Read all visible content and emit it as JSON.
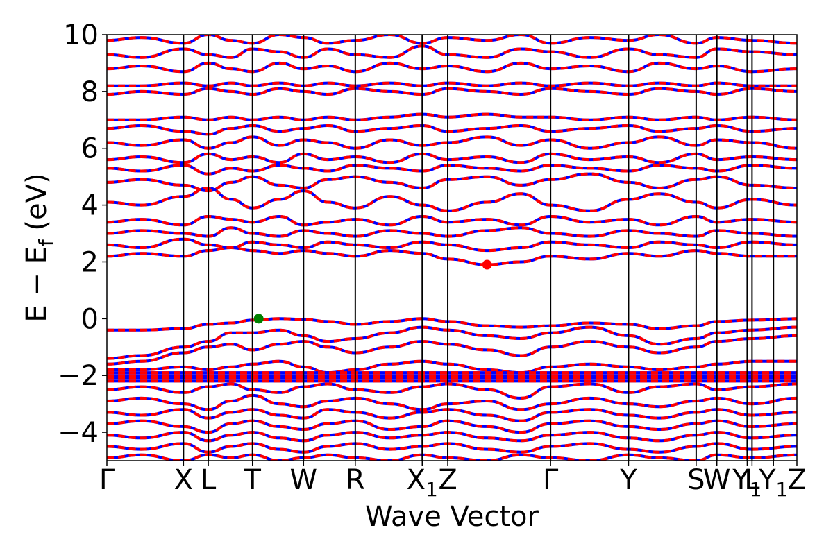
{
  "chart_data": {
    "type": "line",
    "title": "",
    "xlabel": "Wave Vector",
    "ylabel": "E − E_f (eV)",
    "ylabel_parts": {
      "prefix": "E − E",
      "subscript": "f",
      "suffix": " (eV)"
    },
    "ylim": [
      -5,
      10
    ],
    "xlim": [
      0,
      1
    ],
    "yticks": [
      -4,
      -2,
      0,
      2,
      4,
      6,
      8,
      10
    ],
    "ytick_labels": [
      "−4",
      "−2",
      "0",
      "2",
      "4",
      "6",
      "8",
      "10"
    ],
    "grid": false,
    "legend": "none",
    "kpoints": [
      {
        "label": "Γ",
        "pos": 0.0
      },
      {
        "label": "X",
        "pos": 0.111
      },
      {
        "label": "L",
        "pos": 0.147
      },
      {
        "label": "T",
        "pos": 0.211
      },
      {
        "label": "W",
        "pos": 0.285
      },
      {
        "label": "R",
        "pos": 0.36
      },
      {
        "label": "X",
        "sub": "1",
        "pos": 0.457
      },
      {
        "label": "Z",
        "pos": 0.494
      },
      {
        "label": "Γ",
        "pos": 0.643
      },
      {
        "label": "Y",
        "pos": 0.756
      },
      {
        "label": "S",
        "pos": 0.854
      },
      {
        "label": "W",
        "pos": 0.884
      },
      {
        "label": "Y",
        "sub": "1",
        "pos": 0.928
      },
      {
        "label": "L",
        "pos": 0.935
      },
      {
        "label": "Y",
        "sub": "1",
        "pos": 0.966
      },
      {
        "label": "Z",
        "pos": 1.0
      }
    ],
    "vbm_marker": {
      "x": 0.22,
      "y": 0.0,
      "color": "#008000"
    },
    "cbm_marker": {
      "x": 0.551,
      "y": 1.9,
      "color": "#ff0000"
    },
    "series": [
      {
        "values": [
          -0.4,
          -0.4,
          -0.35,
          -0.2,
          -0.15,
          -0.05,
          0.0,
          -0.02,
          -0.1,
          -0.2,
          -0.1,
          0.0,
          -0.1,
          -0.25,
          -0.3,
          -0.25,
          -0.15,
          -0.2,
          -0.35,
          -0.25,
          -0.1,
          -0.05,
          0.0
        ]
      },
      {
        "values": [
          -1.4,
          -1.3,
          -1.0,
          -0.8,
          -0.5,
          -0.5,
          -0.4,
          -0.6,
          -0.8,
          -0.7,
          -0.5,
          -0.3,
          -0.4,
          -0.6,
          -0.7,
          -0.5,
          -0.3,
          -0.6,
          -0.9,
          -0.7,
          -0.5,
          -0.4,
          -0.3
        ]
      },
      {
        "values": [
          -1.6,
          -1.5,
          -1.2,
          -1.0,
          -0.9,
          -1.1,
          -0.9,
          -0.8,
          -1.0,
          -1.2,
          -1.0,
          -0.8,
          -0.9,
          -1.1,
          -1.3,
          -1.0,
          -0.8,
          -1.0,
          -1.2,
          -1.0,
          -0.8,
          -0.7,
          -0.6
        ]
      },
      {
        "values": [
          -1.8,
          -1.8,
          -1.7,
          -1.8,
          -1.7,
          -1.6,
          -1.5,
          -1.7,
          -1.9,
          -1.8,
          -1.6,
          -1.5,
          -1.6,
          -1.8,
          -1.9,
          -1.7,
          -1.6,
          -1.7,
          -1.8,
          -1.7,
          -1.6,
          -1.5,
          -1.5
        ]
      },
      {
        "values": [
          -1.9,
          -1.9,
          -1.9,
          -1.9,
          -1.9,
          -1.9,
          -1.9,
          -1.9,
          -1.9,
          -1.9,
          -1.9,
          -1.9,
          -1.9,
          -1.9,
          -1.9,
          -1.9,
          -1.9,
          -1.9,
          -1.9,
          -1.9,
          -1.9,
          -1.9,
          -1.9
        ]
      },
      {
        "values": [
          -2.0,
          -2.0,
          -2.0,
          -2.0,
          -2.0,
          -2.0,
          -2.0,
          -2.0,
          -2.0,
          -2.0,
          -2.0,
          -2.0,
          -2.0,
          -2.0,
          -2.0,
          -2.0,
          -2.0,
          -2.0,
          -2.0,
          -2.0,
          -2.0,
          -2.0,
          -2.0
        ]
      },
      {
        "values": [
          -2.1,
          -2.1,
          -2.1,
          -2.1,
          -2.1,
          -2.1,
          -2.1,
          -2.1,
          -2.1,
          -2.1,
          -2.1,
          -2.1,
          -2.1,
          -2.1,
          -2.1,
          -2.1,
          -2.1,
          -2.1,
          -2.1,
          -2.1,
          -2.1,
          -2.1,
          -2.1
        ]
      },
      {
        "values": [
          -2.2,
          -2.2,
          -2.2,
          -2.2,
          -2.2,
          -2.2,
          -2.2,
          -2.2,
          -2.2,
          -2.2,
          -2.2,
          -2.2,
          -2.2,
          -2.2,
          -2.2,
          -2.2,
          -2.2,
          -2.2,
          -2.2,
          -2.2,
          -2.2,
          -2.2,
          -2.2
        ]
      },
      {
        "values": [
          -2.5,
          -2.4,
          -2.6,
          -2.4,
          -2.3,
          -2.5,
          -2.6,
          -2.4,
          -2.3,
          -2.5,
          -2.6,
          -2.4,
          -2.3,
          -2.5,
          -2.8,
          -2.4,
          -2.3,
          -2.6,
          -2.4,
          -2.3,
          -2.5,
          -2.4,
          -2.3
        ]
      },
      {
        "values": [
          -2.9,
          -2.8,
          -3.0,
          -3.2,
          -2.9,
          -2.7,
          -3.0,
          -3.1,
          -2.9,
          -2.8,
          -3.0,
          -3.2,
          -3.0,
          -2.9,
          -3.2,
          -3.0,
          -2.8,
          -3.0,
          -3.1,
          -2.9,
          -2.8,
          -3.0,
          -2.8
        ]
      },
      {
        "values": [
          -3.3,
          -3.4,
          -3.2,
          -3.5,
          -3.3,
          -3.2,
          -3.4,
          -3.5,
          -3.2,
          -3.3,
          -3.5,
          -3.3,
          -3.2,
          -3.4,
          -3.6,
          -3.3,
          -3.2,
          -3.4,
          -3.5,
          -3.3,
          -3.2,
          -3.4,
          -3.3
        ]
      },
      {
        "values": [
          -3.7,
          -3.6,
          -3.8,
          -4.0,
          -3.7,
          -3.6,
          -3.8,
          -3.9,
          -3.7,
          -3.6,
          -3.9,
          -3.8,
          -3.6,
          -3.8,
          -4.0,
          -3.7,
          -3.6,
          -3.8,
          -3.9,
          -3.7,
          -3.6,
          -3.8,
          -3.7
        ]
      },
      {
        "values": [
          -4.1,
          -4.2,
          -4.0,
          -4.3,
          -4.1,
          -4.0,
          -4.2,
          -4.3,
          -4.1,
          -4.0,
          -4.2,
          -4.1,
          -4.0,
          -4.2,
          -4.3,
          -4.1,
          -4.0,
          -4.2,
          -4.3,
          -4.1,
          -4.0,
          -4.2,
          -4.1
        ]
      },
      {
        "values": [
          -4.5,
          -4.6,
          -4.4,
          -4.7,
          -4.5,
          -4.4,
          -4.6,
          -4.7,
          -4.5,
          -4.4,
          -4.6,
          -4.5,
          -4.4,
          -4.6,
          -4.7,
          -4.5,
          -4.4,
          -4.6,
          -4.7,
          -4.5,
          -4.4,
          -4.6,
          -4.5
        ]
      },
      {
        "values": [
          -4.9,
          -4.8,
          -5.0,
          -4.8,
          -4.9,
          -4.8,
          -5.0,
          -4.9,
          -4.8,
          -4.9,
          -5.0,
          -4.8,
          -4.9,
          -5.0,
          -4.8,
          -4.9,
          -5.0,
          -4.8,
          -4.9,
          -5.0,
          -4.8,
          -4.9,
          -4.8
        ]
      },
      {
        "values": [
          2.2,
          2.3,
          2.2,
          2.4,
          2.5,
          2.4,
          2.3,
          2.4,
          2.3,
          2.2,
          2.4,
          2.3,
          2.1,
          1.9,
          2.0,
          2.2,
          2.1,
          2.3,
          2.2,
          2.4,
          2.3,
          2.2,
          2.2
        ]
      },
      {
        "values": [
          2.6,
          2.5,
          2.8,
          2.6,
          2.5,
          2.7,
          2.6,
          2.5,
          2.7,
          2.6,
          2.5,
          2.7,
          2.6,
          2.4,
          2.5,
          2.7,
          2.6,
          2.5,
          2.7,
          2.6,
          2.5,
          2.7,
          2.6
        ]
      },
      {
        "values": [
          3.0,
          3.1,
          3.0,
          2.9,
          3.2,
          3.0,
          2.9,
          3.1,
          3.0,
          2.9,
          3.1,
          3.0,
          2.9,
          3.1,
          3.2,
          3.0,
          2.9,
          3.1,
          3.0,
          2.9,
          3.1,
          3.0,
          2.9
        ]
      },
      {
        "values": [
          3.4,
          3.5,
          3.3,
          3.6,
          3.5,
          3.4,
          3.6,
          3.3,
          3.4,
          3.5,
          3.3,
          3.6,
          3.4,
          3.5,
          3.3,
          3.6,
          3.4,
          3.5,
          3.3,
          3.6,
          3.4,
          3.5,
          3.4
        ]
      },
      {
        "values": [
          4.1,
          4.0,
          4.3,
          4.6,
          4.2,
          3.9,
          4.2,
          4.5,
          4.1,
          3.9,
          4.3,
          4.0,
          3.8,
          4.1,
          4.4,
          4.0,
          3.8,
          4.2,
          4.4,
          4.1,
          3.9,
          4.2,
          4.0
        ]
      },
      {
        "values": [
          4.8,
          4.9,
          4.7,
          4.5,
          4.8,
          5.0,
          4.7,
          4.6,
          4.9,
          5.0,
          4.8,
          4.6,
          4.9,
          5.0,
          4.7,
          4.9,
          5.1,
          4.8,
          4.6,
          4.9,
          5.0,
          4.7,
          4.6
        ]
      },
      {
        "values": [
          5.3,
          5.2,
          5.4,
          5.1,
          5.3,
          5.2,
          5.4,
          5.3,
          5.2,
          5.4,
          5.3,
          5.2,
          5.4,
          5.3,
          5.2,
          5.4,
          5.3,
          5.2,
          5.4,
          5.3,
          5.2,
          5.4,
          5.3
        ]
      },
      {
        "values": [
          5.6,
          5.7,
          5.5,
          5.8,
          5.6,
          5.7,
          5.5,
          5.8,
          5.6,
          5.7,
          5.5,
          5.8,
          5.6,
          5.7,
          5.5,
          5.8,
          5.6,
          5.7,
          5.5,
          5.8,
          5.6,
          5.7,
          5.6
        ]
      },
      {
        "values": [
          6.2,
          6.1,
          6.3,
          6.0,
          6.2,
          6.4,
          6.1,
          6.3,
          6.2,
          6.0,
          6.3,
          6.1,
          6.2,
          6.4,
          6.1,
          6.3,
          6.0,
          6.2,
          6.4,
          6.1,
          6.3,
          6.2,
          6.0
        ]
      },
      {
        "values": [
          6.7,
          6.8,
          6.6,
          6.5,
          6.7,
          6.8,
          6.6,
          6.7,
          6.8,
          6.6,
          6.7,
          6.8,
          6.6,
          6.7,
          6.8,
          6.6,
          6.7,
          6.8,
          6.6,
          6.7,
          6.8,
          6.6,
          6.7
        ]
      },
      {
        "values": [
          7.0,
          7.0,
          7.1,
          7.0,
          7.1,
          7.0,
          7.1,
          7.0,
          7.1,
          7.0,
          7.1,
          7.2,
          7.1,
          7.2,
          7.1,
          7.1,
          7.0,
          7.1,
          7.0,
          7.1,
          7.0,
          7.1,
          7.0
        ]
      },
      {
        "values": [
          7.9,
          8.0,
          7.9,
          8.1,
          8.0,
          7.9,
          8.1,
          8.0,
          7.9,
          8.1,
          8.0,
          7.9,
          8.1,
          8.0,
          7.9,
          8.1,
          8.0,
          7.9,
          8.1,
          8.0,
          7.9,
          8.1,
          8.0
        ]
      },
      {
        "values": [
          8.2,
          8.2,
          8.3,
          8.2,
          8.3,
          8.2,
          8.3,
          8.2,
          8.3,
          8.2,
          8.3,
          8.2,
          8.3,
          8.2,
          8.3,
          8.2,
          8.3,
          8.2,
          8.3,
          8.2,
          8.3,
          8.2,
          8.2
        ]
      },
      {
        "values": [
          8.8,
          8.9,
          8.7,
          9.0,
          8.8,
          8.7,
          9.0,
          8.8,
          8.9,
          8.7,
          9.0,
          8.8,
          8.9,
          8.7,
          9.0,
          8.8,
          8.9,
          8.7,
          9.0,
          8.8,
          8.9,
          8.7,
          8.8
        ]
      },
      {
        "values": [
          9.3,
          9.2,
          9.5,
          9.3,
          9.2,
          9.5,
          9.4,
          9.2,
          9.5,
          9.3,
          9.2,
          9.6,
          9.3,
          9.2,
          9.5,
          9.4,
          9.2,
          9.5,
          9.3,
          9.2,
          9.5,
          9.4,
          9.3
        ]
      },
      {
        "values": [
          9.8,
          9.9,
          9.7,
          10.0,
          9.8,
          9.7,
          10.0,
          9.9,
          9.7,
          9.8,
          10.0,
          9.7,
          9.9,
          9.8,
          10.0,
          9.7,
          9.9,
          9.8,
          10.0,
          9.7,
          9.9,
          9.8,
          9.7
        ]
      }
    ],
    "band_x": [
      0.0,
      0.05,
      0.111,
      0.147,
      0.18,
      0.211,
      0.25,
      0.285,
      0.32,
      0.36,
      0.41,
      0.457,
      0.494,
      0.551,
      0.6,
      0.643,
      0.7,
      0.756,
      0.8,
      0.854,
      0.884,
      0.935,
      1.0
    ],
    "colors": {
      "band_primary": "#ff0000",
      "band_secondary": "#0000ff",
      "kpath_line": "#000000"
    }
  }
}
